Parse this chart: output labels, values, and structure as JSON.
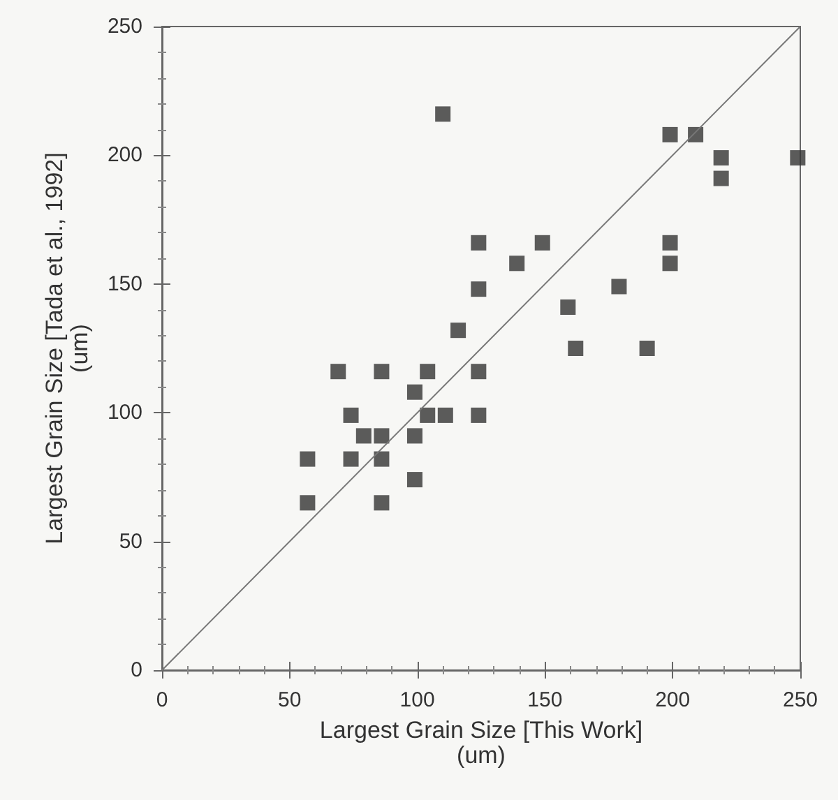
{
  "chart_data": {
    "type": "scatter",
    "xlabel": "Largest Grain Size [This Work]\n(um)",
    "ylabel": "Largest Grain Size [Tada et al., 1992]\n(um)",
    "xlim": [
      0,
      250
    ],
    "ylim": [
      0,
      250
    ],
    "xticks": [
      0,
      50,
      100,
      150,
      200,
      250
    ],
    "yticks": [
      0,
      50,
      100,
      150,
      200,
      250
    ],
    "grid": false,
    "marker": "square",
    "series": [
      {
        "color": "#333333",
        "x": [
          110,
          199,
          209,
          219,
          219,
          249,
          124,
          149,
          139,
          124,
          199,
          199,
          179,
          159,
          162,
          190,
          116,
          69,
          86,
          104,
          124,
          99,
          74,
          104,
          111,
          124,
          79,
          86,
          99,
          57,
          74,
          86,
          99,
          57,
          86
        ],
        "values": [
          216,
          208,
          208,
          199,
          191,
          199,
          166,
          166,
          158,
          148,
          166,
          158,
          149,
          141,
          125,
          125,
          132,
          116,
          116,
          116,
          116,
          108,
          99,
          99,
          99,
          99,
          91,
          91,
          91,
          82,
          82,
          82,
          74,
          65,
          65
        ]
      },
      {
        "type": "line",
        "color": "#777777",
        "marker": "none",
        "line_style": "solid",
        "x": [
          0,
          250
        ],
        "values": [
          0,
          250
        ]
      }
    ]
  }
}
